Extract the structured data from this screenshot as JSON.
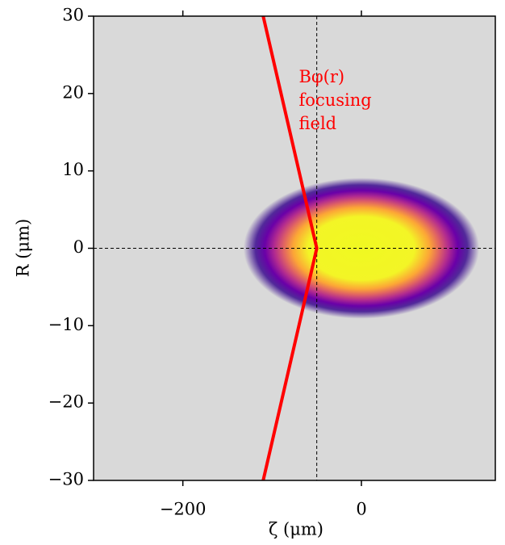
{
  "chart_data": {
    "type": "line",
    "xlabel": "ζ (μm)",
    "ylabel": "R (μm)",
    "xlim": [
      -300,
      150
    ],
    "ylim": [
      -30,
      30
    ],
    "xticks": [
      {
        "value": -200,
        "label": "−200"
      },
      0
    ],
    "yticks": [
      {
        "value": -30,
        "label": "−30"
      },
      {
        "value": -20,
        "label": "−20"
      },
      {
        "value": -10,
        "label": "−10"
      },
      0,
      10,
      20,
      30
    ],
    "background": "#d9d9d9",
    "series": [
      {
        "color": "#ff0000",
        "x": [
          -110,
          -50,
          -110
        ],
        "values": [
          30,
          0,
          -30
        ]
      }
    ],
    "beam": {
      "x": 0,
      "y": 0,
      "rx": 120,
      "ry": 6.5
    },
    "vlines": [
      -50
    ],
    "hlines": [
      0
    ],
    "annotation": {
      "lines": [
        "Bφ(r)",
        "focusing",
        "field"
      ],
      "x": -70,
      "y": 22,
      "color": "#ff0000"
    }
  }
}
